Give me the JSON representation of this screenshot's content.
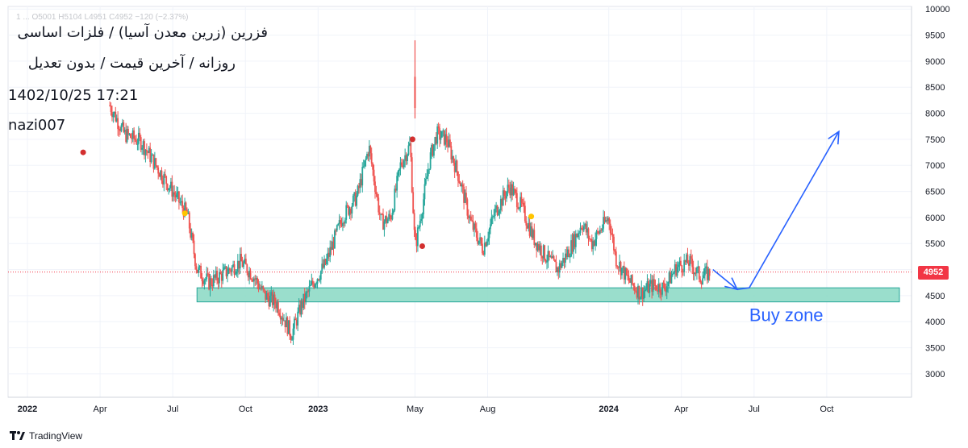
{
  "legend": {
    "symbol_title": "فزرین (زرین معدن آسیا) / فلزات اساسی",
    "interval_line": "روزانه / آخرین قیمت / بدون تعدیل",
    "datetime": "1402/10/25 17:21",
    "author": "nazi007",
    "ohlc_strip": "1 ... O5001 H5104 L4951 C4952 −120 (−2.37%)"
  },
  "price_label": "4952",
  "annotation": {
    "buy_zone_label": "Buy zone"
  },
  "watermark": {
    "brand": "TradingView"
  },
  "colors": {
    "up": "#26a69a",
    "down": "#ef5350",
    "zone_fill": "#8fdac6",
    "zone_stroke": "#26a69a",
    "arrow": "#2962ff",
    "last_price": "#f23645",
    "dividend_marker_red": "#d32f2f",
    "dividend_marker_yellow": "#ffc400"
  },
  "chart_data": {
    "type": "candlestick",
    "title": "",
    "x_tick_labels": [
      "2022",
      "Apr",
      "Jul",
      "Oct",
      "2023",
      "May",
      "Aug",
      "2024",
      "Apr",
      "Jul",
      "Oct"
    ],
    "x_tick_months": [
      0,
      3,
      6,
      9,
      12,
      16,
      19,
      24,
      27,
      30,
      33
    ],
    "y_ticks": [
      3000,
      3500,
      4000,
      4500,
      5000,
      5500,
      6000,
      6500,
      7000,
      7500,
      8000,
      8500,
      9000,
      9500,
      10000
    ],
    "ylim": [
      2550,
      10050
    ],
    "xlim_months": [
      -0.8,
      36.5
    ],
    "last_price": 4952,
    "grid": true,
    "price_path": [
      {
        "t": 3.4,
        "p": 8150
      },
      {
        "t": 4.0,
        "p": 7600
      },
      {
        "t": 4.7,
        "p": 7450
      },
      {
        "t": 5.3,
        "p": 7000
      },
      {
        "t": 6.0,
        "p": 6500
      },
      {
        "t": 6.6,
        "p": 6050
      },
      {
        "t": 7.0,
        "p": 5000
      },
      {
        "t": 7.5,
        "p": 4750
      },
      {
        "t": 8.2,
        "p": 4950
      },
      {
        "t": 8.8,
        "p": 5150
      },
      {
        "t": 9.3,
        "p": 4900
      },
      {
        "t": 9.8,
        "p": 4500
      },
      {
        "t": 10.3,
        "p": 4350
      },
      {
        "t": 10.9,
        "p": 3750
      },
      {
        "t": 11.3,
        "p": 4300
      },
      {
        "t": 11.8,
        "p": 4750
      },
      {
        "t": 12.3,
        "p": 5100
      },
      {
        "t": 13.0,
        "p": 6000
      },
      {
        "t": 13.6,
        "p": 6400
      },
      {
        "t": 14.1,
        "p": 7350
      },
      {
        "t": 14.6,
        "p": 5900
      },
      {
        "t": 15.0,
        "p": 6000
      },
      {
        "t": 15.4,
        "p": 7000
      },
      {
        "t": 15.8,
        "p": 7400
      },
      {
        "t": 16.0,
        "p": 5400
      },
      {
        "t": 16.3,
        "p": 6200
      },
      {
        "t": 16.6,
        "p": 7100
      },
      {
        "t": 16.9,
        "p": 7600
      },
      {
        "t": 17.3,
        "p": 7500
      },
      {
        "t": 17.8,
        "p": 6800
      },
      {
        "t": 18.3,
        "p": 5900
      },
      {
        "t": 18.8,
        "p": 5400
      },
      {
        "t": 19.3,
        "p": 6100
      },
      {
        "t": 19.9,
        "p": 6600
      },
      {
        "t": 20.4,
        "p": 6200
      },
      {
        "t": 20.9,
        "p": 5600
      },
      {
        "t": 21.4,
        "p": 5250
      },
      {
        "t": 21.9,
        "p": 5000
      },
      {
        "t": 22.4,
        "p": 5400
      },
      {
        "t": 22.9,
        "p": 5900
      },
      {
        "t": 23.3,
        "p": 5500
      },
      {
        "t": 23.7,
        "p": 5800
      },
      {
        "t": 24.0,
        "p": 6000
      },
      {
        "t": 24.3,
        "p": 5200
      },
      {
        "t": 24.8,
        "p": 4800
      },
      {
        "t": 25.3,
        "p": 4550
      },
      {
        "t": 25.8,
        "p": 4700
      },
      {
        "t": 26.3,
        "p": 4650
      },
      {
        "t": 26.8,
        "p": 5050
      },
      {
        "t": 27.3,
        "p": 5150
      },
      {
        "t": 27.8,
        "p": 4850
      },
      {
        "t": 28.2,
        "p": 4950
      }
    ],
    "spike": {
      "t": 16.0,
      "high": 9400,
      "open": 8700,
      "close": 8100
    },
    "buy_zone": {
      "t_start": 7.0,
      "t_end": 36.0,
      "p_low": 4380,
      "p_high": 4650
    },
    "projection_arrow": [
      {
        "t": 28.3,
        "p": 5000
      },
      {
        "t": 29.3,
        "p": 4620
      },
      {
        "t": 29.8,
        "p": 4650
      },
      {
        "t": 33.5,
        "p": 7650
      }
    ],
    "event_markers": [
      {
        "t": 2.3,
        "p": 7250,
        "color": "red"
      },
      {
        "t": 6.5,
        "p": 6080,
        "color": "yellow"
      },
      {
        "t": 15.9,
        "p": 7500,
        "color": "red"
      },
      {
        "t": 16.3,
        "p": 5450,
        "color": "red"
      },
      {
        "t": 20.8,
        "p": 6020,
        "color": "yellow"
      }
    ]
  }
}
